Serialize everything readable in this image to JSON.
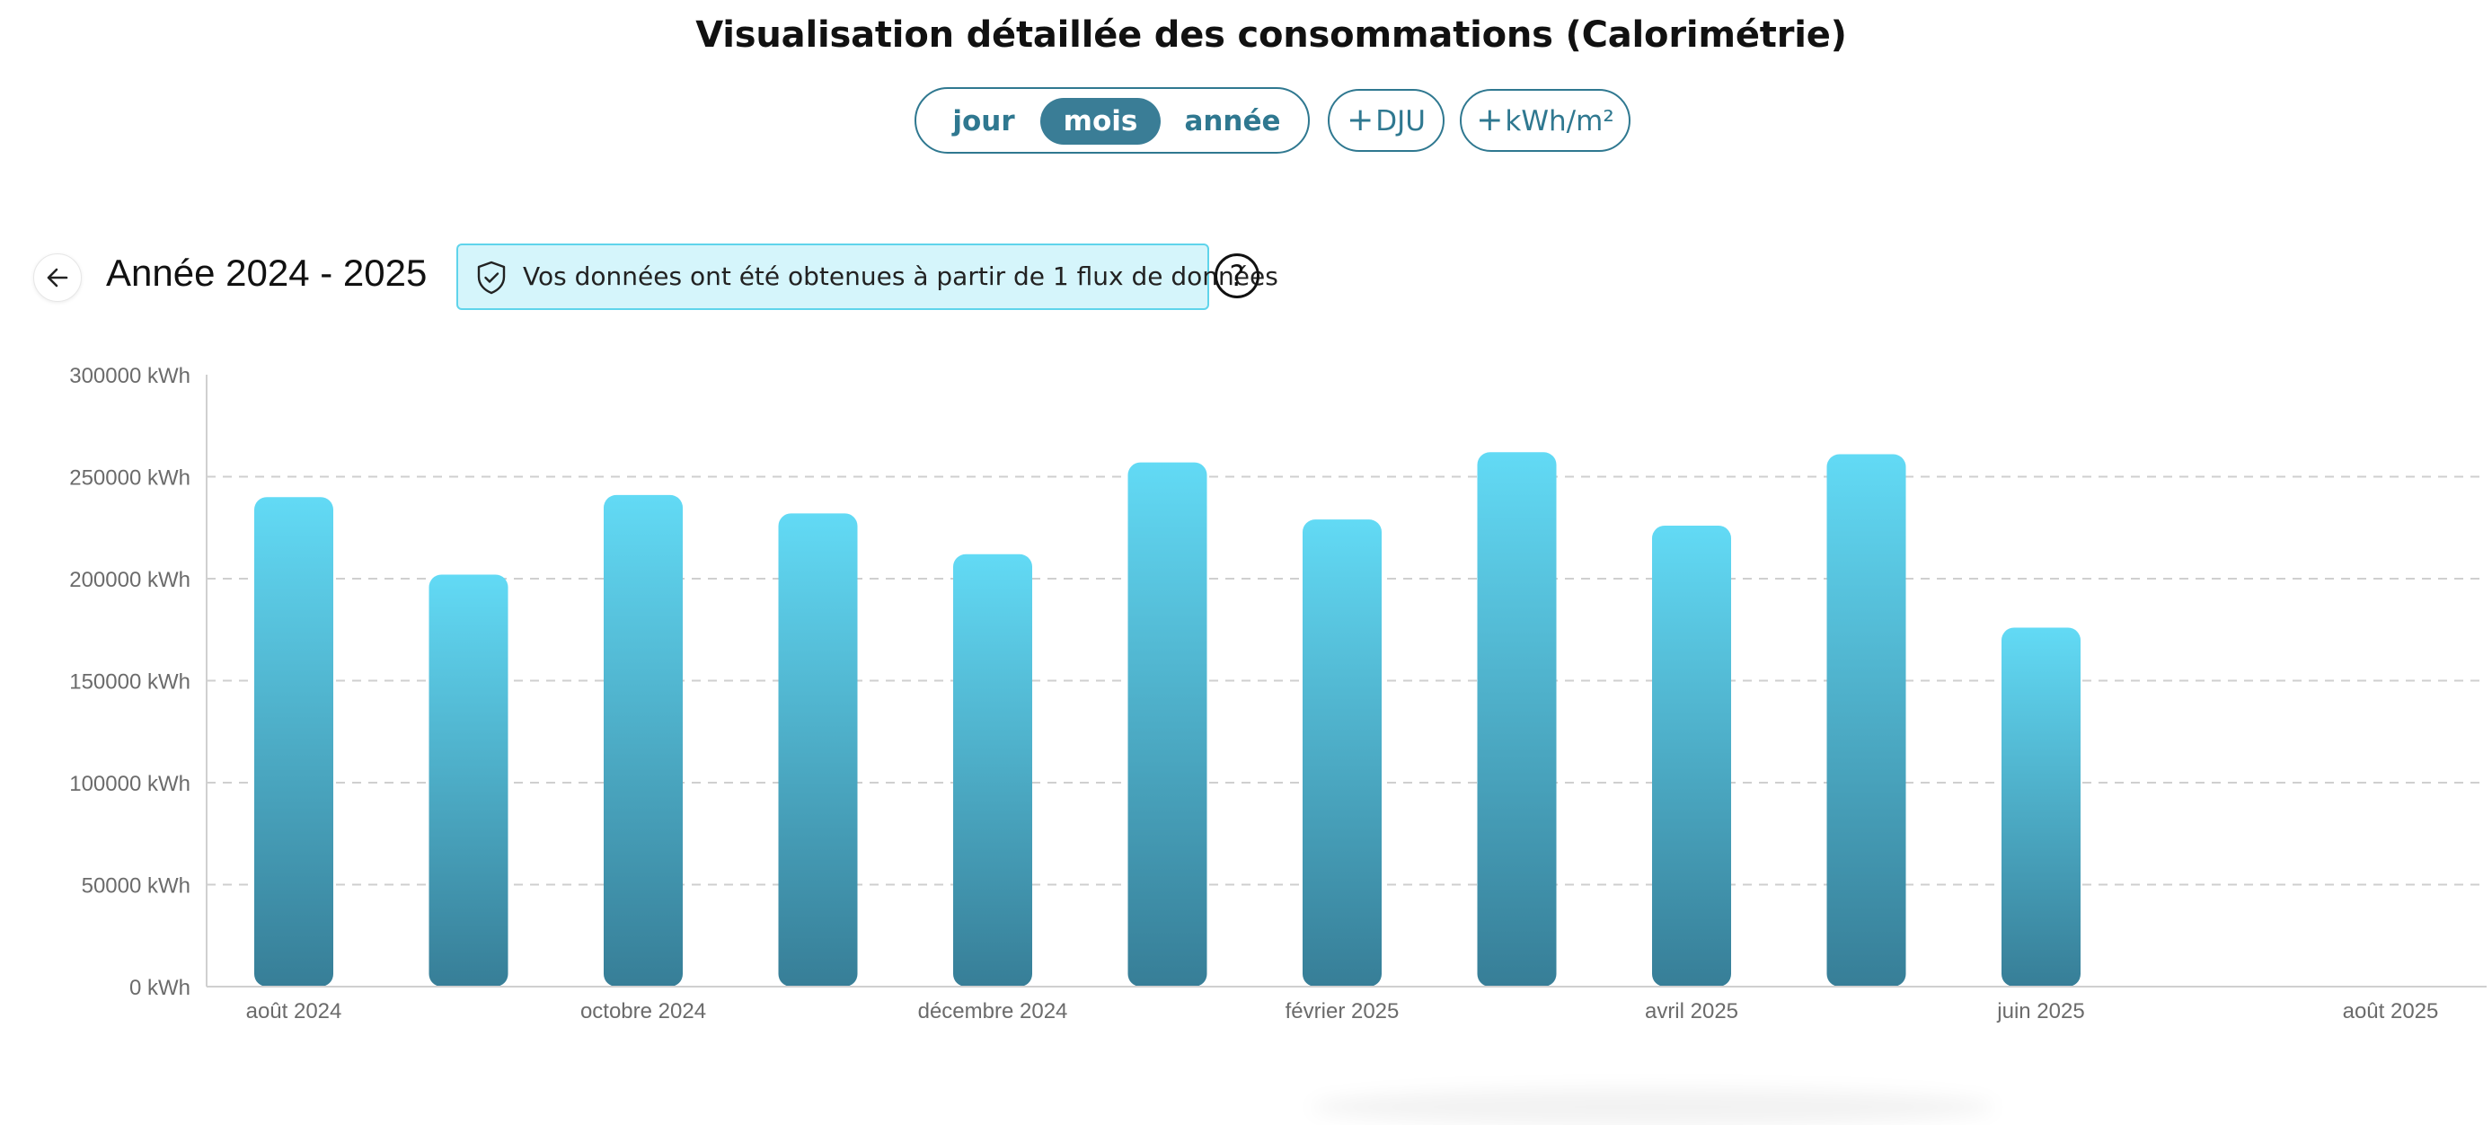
{
  "header": {
    "title": "Visualisation détaillée des consommations (Calorimétrie)",
    "granularity": {
      "options": [
        "jour",
        "mois",
        "année"
      ],
      "selected": "mois"
    },
    "toggles": {
      "dju": "DJU",
      "kwh_m2": "kWh/m²"
    }
  },
  "period": {
    "label": "Année 2024 - 2025",
    "info": "Vos données ont été obtenues à partir de 1 flux de données",
    "help": "?"
  },
  "colors": {
    "bar_top": "#62daf5",
    "bar_bottom": "#377e97",
    "accent": "#2f7890",
    "info_bg": "#d5f5fb",
    "info_border": "#5fd4eb"
  },
  "chart_data": {
    "type": "bar",
    "unit": "kWh",
    "x_ticks": [
      "août 2024",
      "octobre 2024",
      "décembre 2024",
      "février 2025",
      "avril 2025",
      "juin 2025",
      "août 2025"
    ],
    "y_ticks": [
      "0 kWh",
      "50000 kWh",
      "100000 kWh",
      "150000 kWh",
      "200000 kWh",
      "250000 kWh",
      "300000 kWh"
    ],
    "ylim": [
      0,
      300000
    ],
    "categories": [
      "2024-08",
      "2024-09",
      "2024-10",
      "2024-11",
      "2024-12",
      "2025-01",
      "2025-02",
      "2025-03",
      "2025-04",
      "2025-05",
      "2025-06"
    ],
    "values": [
      240000,
      202000,
      241000,
      232000,
      212000,
      257000,
      229000,
      262000,
      226000,
      261000,
      176000
    ],
    "grid": "horizontal dashed"
  }
}
